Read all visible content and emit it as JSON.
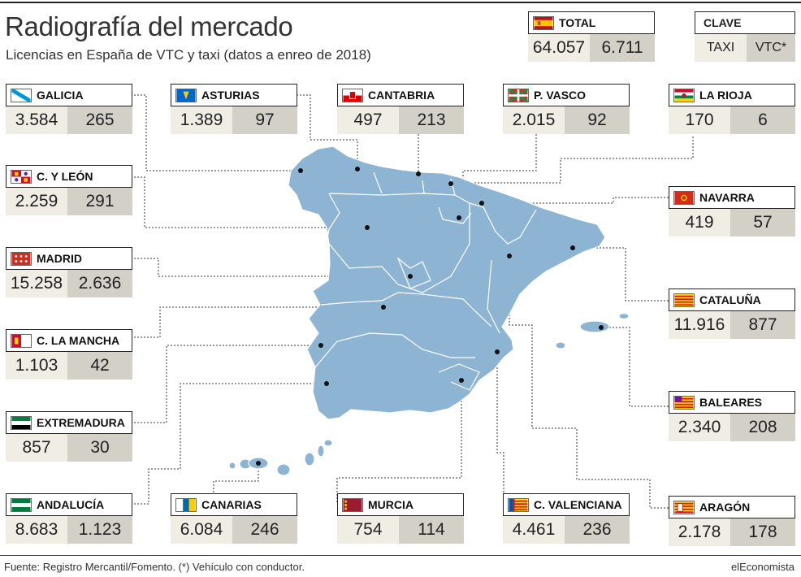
{
  "title": "Radiografía del mercado",
  "subtitle": "Licencias en España de VTC y taxi (datos a enreo de 2018)",
  "footer": {
    "source": "Fuente: Registro Mercantil/Fomento. (*) Vehículo con conductor.",
    "brand": "elEconomista"
  },
  "total": {
    "label": "TOTAL",
    "taxi": "64.057",
    "vtc": "6.711"
  },
  "key": {
    "title": "CLAVE",
    "taxi": "TAXI",
    "vtc": "VTC*"
  },
  "colors": {
    "map_fill": "#8db4d3",
    "taxi_bg": "#f0ede4",
    "vtc_bg": "#d2d0c7"
  },
  "chart_data": {
    "type": "table",
    "title": "Radiografía del mercado",
    "columns": [
      "TAXI",
      "VTC*"
    ],
    "rows": [
      {
        "region": "GALICIA",
        "taxi": "3.584",
        "vtc": "265"
      },
      {
        "region": "ASTURIAS",
        "taxi": "1.389",
        "vtc": "97"
      },
      {
        "region": "CANTABRIA",
        "taxi": "497",
        "vtc": "213"
      },
      {
        "region": "P. VASCO",
        "taxi": "2.015",
        "vtc": "92"
      },
      {
        "region": "LA RIOJA",
        "taxi": "170",
        "vtc": "6"
      },
      {
        "region": "C. Y LEÓN",
        "taxi": "2.259",
        "vtc": "291"
      },
      {
        "region": "NAVARRA",
        "taxi": "419",
        "vtc": "57"
      },
      {
        "region": "MADRID",
        "taxi": "15.258",
        "vtc": "2.636"
      },
      {
        "region": "C. LA MANCHA",
        "taxi": "1.103",
        "vtc": "42"
      },
      {
        "region": "CATALUÑA",
        "taxi": "11.916",
        "vtc": "877"
      },
      {
        "region": "BALEARES",
        "taxi": "2.340",
        "vtc": "208"
      },
      {
        "region": "EXTREMADURA",
        "taxi": "857",
        "vtc": "30"
      },
      {
        "region": "ANDALUCÍA",
        "taxi": "8.683",
        "vtc": "1.123"
      },
      {
        "region": "CANARIAS",
        "taxi": "6.084",
        "vtc": "246"
      },
      {
        "region": "MURCIA",
        "taxi": "754",
        "vtc": "114"
      },
      {
        "region": "C. VALENCIANA",
        "taxi": "4.461",
        "vtc": "236"
      },
      {
        "region": "ARAGÓN",
        "taxi": "2.178",
        "vtc": "178"
      }
    ]
  }
}
